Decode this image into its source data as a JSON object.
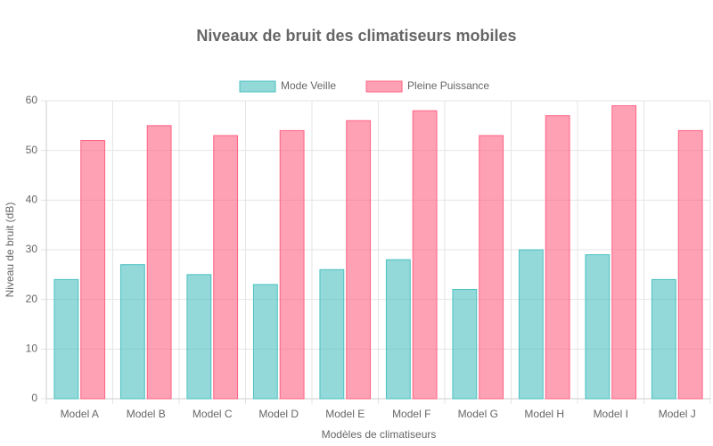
{
  "chart_data": {
    "type": "bar",
    "title": "Niveaux de bruit des climatiseurs mobiles",
    "x_label": "Modèles de climatiseurs",
    "y_label": "Niveau de bruit (dB)",
    "categories": [
      "Model A",
      "Model B",
      "Model C",
      "Model D",
      "Model E",
      "Model F",
      "Model G",
      "Model H",
      "Model I",
      "Model J"
    ],
    "series": [
      {
        "name": "Mode Veille",
        "color": "#4bc0c0",
        "values": [
          24,
          27,
          25,
          23,
          26,
          28,
          22,
          30,
          29,
          24
        ]
      },
      {
        "name": "Pleine Puissance",
        "color": "#ff6384",
        "values": [
          52,
          55,
          53,
          54,
          56,
          58,
          53,
          57,
          59,
          54
        ]
      }
    ],
    "ylim": [
      0,
      60
    ],
    "yticks": [
      0,
      10,
      20,
      30,
      40,
      50,
      60
    ],
    "grid": true,
    "legend": "top"
  }
}
